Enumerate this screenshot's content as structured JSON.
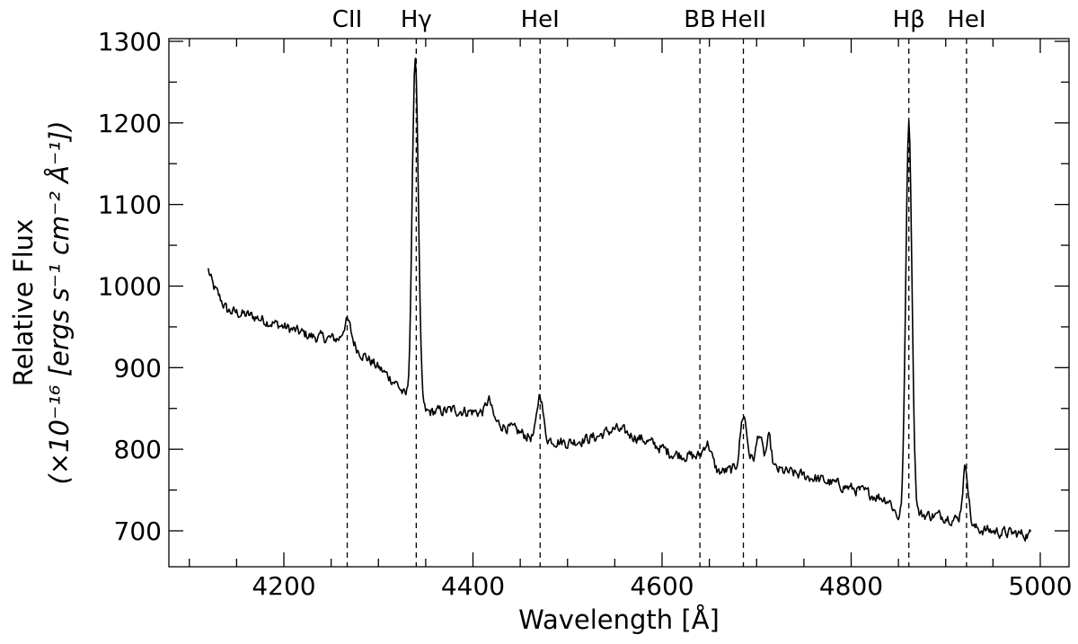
{
  "chart_data": {
    "type": "line",
    "title": "",
    "xlabel": "Wavelength [Å]",
    "ylabel_line1": "Relative Flux",
    "ylabel_line2": "(×10⁻¹⁶ [ergs s⁻¹ cm⁻² Å⁻¹])",
    "xlim": [
      4075,
      5030
    ],
    "ylim": [
      655,
      1305
    ],
    "x_ticks": [
      4200,
      4400,
      4600,
      4800,
      5000
    ],
    "x_tick_labels": [
      "4200",
      "4400",
      "4600",
      "4800",
      "5000"
    ],
    "x_minor_step": 50,
    "y_ticks": [
      700,
      800,
      900,
      1000,
      1100,
      1200,
      1300
    ],
    "y_tick_labels": [
      "700",
      "800",
      "900",
      "1000",
      "1100",
      "1200",
      "1300"
    ],
    "y_minor_step": 50,
    "grid": false,
    "legend": null,
    "ticks_direction": "in",
    "ticks_all_sides": true,
    "line_color": "#000000",
    "spectral_lines": [
      {
        "label": "CII",
        "wavelength": 4267
      },
      {
        "label": "Hγ",
        "wavelength": 4340
      },
      {
        "label": "HeI",
        "wavelength": 4471
      },
      {
        "label": "BB",
        "wavelength": 4640
      },
      {
        "label": "HeII",
        "wavelength": 4686
      },
      {
        "label": "Hβ",
        "wavelength": 4861
      },
      {
        "label": "HeI",
        "wavelength": 4922
      }
    ],
    "continuum": {
      "x": [
        4120,
        4125,
        4140,
        4170,
        4200,
        4230,
        4255,
        4275,
        4300,
        4320,
        4333,
        4350,
        4380,
        4410,
        4420,
        4440,
        4460,
        4480,
        4500,
        4530,
        4550,
        4580,
        4610,
        4640,
        4660,
        4680,
        4700,
        4720,
        4760,
        4800,
        4840,
        4855,
        4870,
        4900,
        4915,
        4930,
        4960,
        4990
      ],
      "y": [
        1020,
        1000,
        970,
        962,
        950,
        938,
        935,
        925,
        900,
        880,
        855,
        845,
        848,
        845,
        835,
        825,
        815,
        812,
        808,
        815,
        825,
        812,
        795,
        790,
        772,
        775,
        790,
        775,
        765,
        752,
        738,
        705,
        720,
        718,
        712,
        703,
        698,
        695
      ]
    },
    "emission_lines": [
      {
        "center": 4267,
        "amplitude": 28,
        "sigma": 4
      },
      {
        "center": 4339,
        "amplitude": 430,
        "sigma": 3.2
      },
      {
        "center": 4417,
        "amplitude": 22,
        "sigma": 3
      },
      {
        "center": 4471,
        "amplitude": 55,
        "sigma": 3
      },
      {
        "center": 4648,
        "amplitude": 25,
        "sigma": 4
      },
      {
        "center": 4686,
        "amplitude": 62,
        "sigma": 3.5
      },
      {
        "center": 4703,
        "amplitude": 32,
        "sigma": 2.5
      },
      {
        "center": 4713,
        "amplitude": 32,
        "sigma": 2.5
      },
      {
        "center": 4861,
        "amplitude": 490,
        "sigma": 3.3
      },
      {
        "center": 4921,
        "amplitude": 70,
        "sigma": 3
      }
    ],
    "noise_amplitude": 11,
    "sample_step": 1.0,
    "series": [
      {
        "name": "spectrum",
        "x_range": [
          4120,
          4990
        ]
      }
    ]
  }
}
